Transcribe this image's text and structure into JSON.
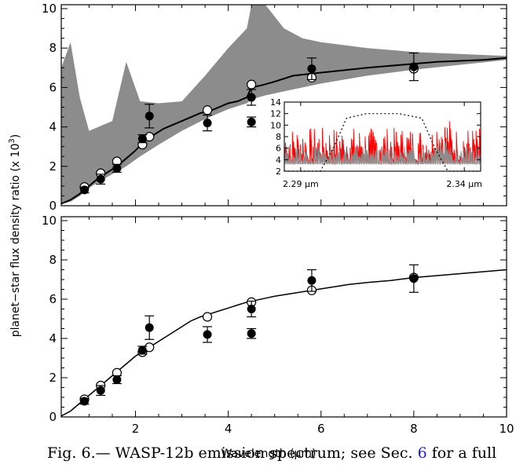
{
  "chart_data": [
    {
      "type": "line",
      "panel": "top",
      "xlim": [
        0.4,
        10
      ],
      "ylim": [
        0,
        10.2
      ],
      "xticks": [
        2,
        4,
        6,
        8,
        10
      ],
      "yticks": [
        0,
        2,
        4,
        6,
        8,
        10
      ],
      "series": [
        {
          "style": "gray high-resolution model spectrum",
          "x": [
            0.4,
            0.6,
            0.8,
            1.0,
            1.2,
            1.5,
            1.8,
            2.1,
            2.5,
            3.0,
            3.5,
            4.0,
            4.4,
            4.5,
            4.8,
            5.2,
            5.6,
            6.0,
            7.0,
            8.0,
            10.0
          ],
          "y_min": [
            0.1,
            0.2,
            0.5,
            0.9,
            1.2,
            1.6,
            2.0,
            2.5,
            3.1,
            3.8,
            4.4,
            4.9,
            5.2,
            5.4,
            5.6,
            5.8,
            6.0,
            6.2,
            6.6,
            6.9,
            7.4
          ],
          "y_max": [
            7.0,
            8.3,
            5.5,
            3.8,
            4.0,
            4.3,
            7.3,
            5.3,
            5.2,
            5.3,
            6.6,
            8.0,
            9.0,
            10.2,
            10.2,
            9.0,
            8.5,
            8.3,
            8.0,
            7.8,
            7.6
          ]
        },
        {
          "style": "black binned model spectrum",
          "x": [
            0.4,
            0.6,
            0.8,
            1.0,
            1.2,
            1.4,
            1.6,
            1.8,
            2.0,
            2.2,
            2.4,
            2.6,
            2.8,
            3.0,
            3.2,
            3.4,
            3.6,
            3.8,
            4.0,
            4.2,
            4.4,
            4.5,
            4.7,
            5.0,
            5.4,
            5.8,
            6.2,
            6.6,
            7.0,
            7.5,
            8.0,
            8.5,
            9.0,
            9.5,
            10.0
          ],
          "y": [
            0.1,
            0.3,
            0.6,
            1.0,
            1.4,
            1.7,
            2.0,
            2.4,
            2.8,
            3.3,
            3.6,
            3.9,
            4.1,
            4.3,
            4.5,
            4.7,
            4.8,
            5.0,
            5.2,
            5.3,
            5.5,
            6.0,
            6.1,
            6.3,
            6.6,
            6.7,
            6.8,
            6.9,
            7.0,
            7.1,
            7.2,
            7.3,
            7.35,
            7.4,
            7.5
          ]
        }
      ],
      "observed_points": [
        {
          "x": 0.9,
          "y": 0.8,
          "err": 0.15
        },
        {
          "x": 1.25,
          "y": 1.35,
          "err": 0.25
        },
        {
          "x": 1.6,
          "y": 1.9,
          "err": 0.2
        },
        {
          "x": 2.15,
          "y": 3.4,
          "err": 0.2
        },
        {
          "x": 2.3,
          "y": 4.55,
          "err": 0.6
        },
        {
          "x": 3.55,
          "y": 4.2,
          "err": 0.4
        },
        {
          "x": 4.5,
          "y": 4.25,
          "err": 0.25
        },
        {
          "x": 4.5,
          "y": 5.5,
          "err": 0.4
        },
        {
          "x": 5.8,
          "y": 6.95,
          "err": 0.55
        },
        {
          "x": 8.0,
          "y": 7.05,
          "err": 0.7
        }
      ],
      "model_points": [
        {
          "x": 0.9,
          "y": 0.95
        },
        {
          "x": 1.25,
          "y": 1.65
        },
        {
          "x": 1.6,
          "y": 2.25
        },
        {
          "x": 2.15,
          "y": 3.1
        },
        {
          "x": 2.3,
          "y": 3.5
        },
        {
          "x": 3.55,
          "y": 4.85
        },
        {
          "x": 4.5,
          "y": 6.15
        },
        {
          "x": 5.8,
          "y": 6.5
        },
        {
          "x": 8.0,
          "y": 6.95
        }
      ],
      "inset": {
        "xlim": [
          2.285,
          2.345
        ],
        "ylim": [
          2,
          14
        ],
        "yticks": [
          2,
          4,
          6,
          8,
          10,
          12,
          14
        ],
        "xtick_labels": [
          "2.29 μm",
          "2.34 μm"
        ],
        "colors": {
          "spectrum_a": "#ff0000",
          "spectrum_b": "#8c8c8c",
          "filter": "#000000"
        },
        "filter_curve": {
          "x": [
            2.285,
            2.296,
            2.3,
            2.304,
            2.31,
            2.32,
            2.327,
            2.331,
            2.335,
            2.345
          ],
          "y": [
            2,
            2,
            6,
            11.2,
            12.0,
            12.0,
            11.2,
            6,
            2,
            2
          ]
        }
      }
    },
    {
      "type": "line",
      "panel": "bottom",
      "xlim": [
        0.4,
        10
      ],
      "ylim": [
        0,
        10.2
      ],
      "xticks": [
        2,
        4,
        6,
        8,
        10
      ],
      "yticks": [
        0,
        2,
        4,
        6,
        8,
        10
      ],
      "series": [
        {
          "style": "black model spectrum",
          "x": [
            0.4,
            0.6,
            0.8,
            1.0,
            1.2,
            1.4,
            1.6,
            1.8,
            2.0,
            2.2,
            2.4,
            2.6,
            2.8,
            3.0,
            3.2,
            3.4,
            3.6,
            3.8,
            4.0,
            4.2,
            4.4,
            4.6,
            4.8,
            5.0,
            5.4,
            5.8,
            6.2,
            6.6,
            7.0,
            7.5,
            8.0,
            8.5,
            9.0,
            9.5,
            10.0
          ],
          "y": [
            0.05,
            0.3,
            0.7,
            1.1,
            1.5,
            1.9,
            2.3,
            2.7,
            3.1,
            3.4,
            3.7,
            4.0,
            4.3,
            4.6,
            4.9,
            5.1,
            5.25,
            5.4,
            5.55,
            5.7,
            5.85,
            5.95,
            6.05,
            6.15,
            6.3,
            6.45,
            6.6,
            6.75,
            6.85,
            6.95,
            7.1,
            7.2,
            7.3,
            7.4,
            7.5
          ]
        }
      ],
      "observed_points": [
        {
          "x": 0.9,
          "y": 0.8,
          "err": 0.15
        },
        {
          "x": 1.25,
          "y": 1.35,
          "err": 0.25
        },
        {
          "x": 1.6,
          "y": 1.9,
          "err": 0.2
        },
        {
          "x": 2.15,
          "y": 3.4,
          "err": 0.2
        },
        {
          "x": 2.3,
          "y": 4.55,
          "err": 0.6
        },
        {
          "x": 3.55,
          "y": 4.2,
          "err": 0.4
        },
        {
          "x": 4.5,
          "y": 4.25,
          "err": 0.25
        },
        {
          "x": 4.5,
          "y": 5.5,
          "err": 0.4
        },
        {
          "x": 5.8,
          "y": 6.95,
          "err": 0.55
        },
        {
          "x": 8.0,
          "y": 7.05,
          "err": 0.7
        }
      ],
      "model_points": [
        {
          "x": 0.9,
          "y": 0.9
        },
        {
          "x": 1.25,
          "y": 1.6
        },
        {
          "x": 1.6,
          "y": 2.25
        },
        {
          "x": 2.15,
          "y": 3.3
        },
        {
          "x": 2.3,
          "y": 3.55
        },
        {
          "x": 3.55,
          "y": 5.1
        },
        {
          "x": 4.5,
          "y": 5.85
        },
        {
          "x": 5.8,
          "y": 6.45
        },
        {
          "x": 8.0,
          "y": 7.1
        }
      ]
    }
  ],
  "labels": {
    "ylabel": "planet−star flux density ratio (x 10",
    "ylabel_sup": "3",
    "ylabel_end": ")",
    "xlabel": "Wavelength (μm)"
  },
  "caption": {
    "prefix": "Fig. 6.— WASP-12b emission spectrum; see Sec. ",
    "ref": "6",
    "suffix": " for a full"
  },
  "colors": {
    "model_fill": "#8c8c8c",
    "model_line": "#000000",
    "ref_link": "#2222cc"
  }
}
